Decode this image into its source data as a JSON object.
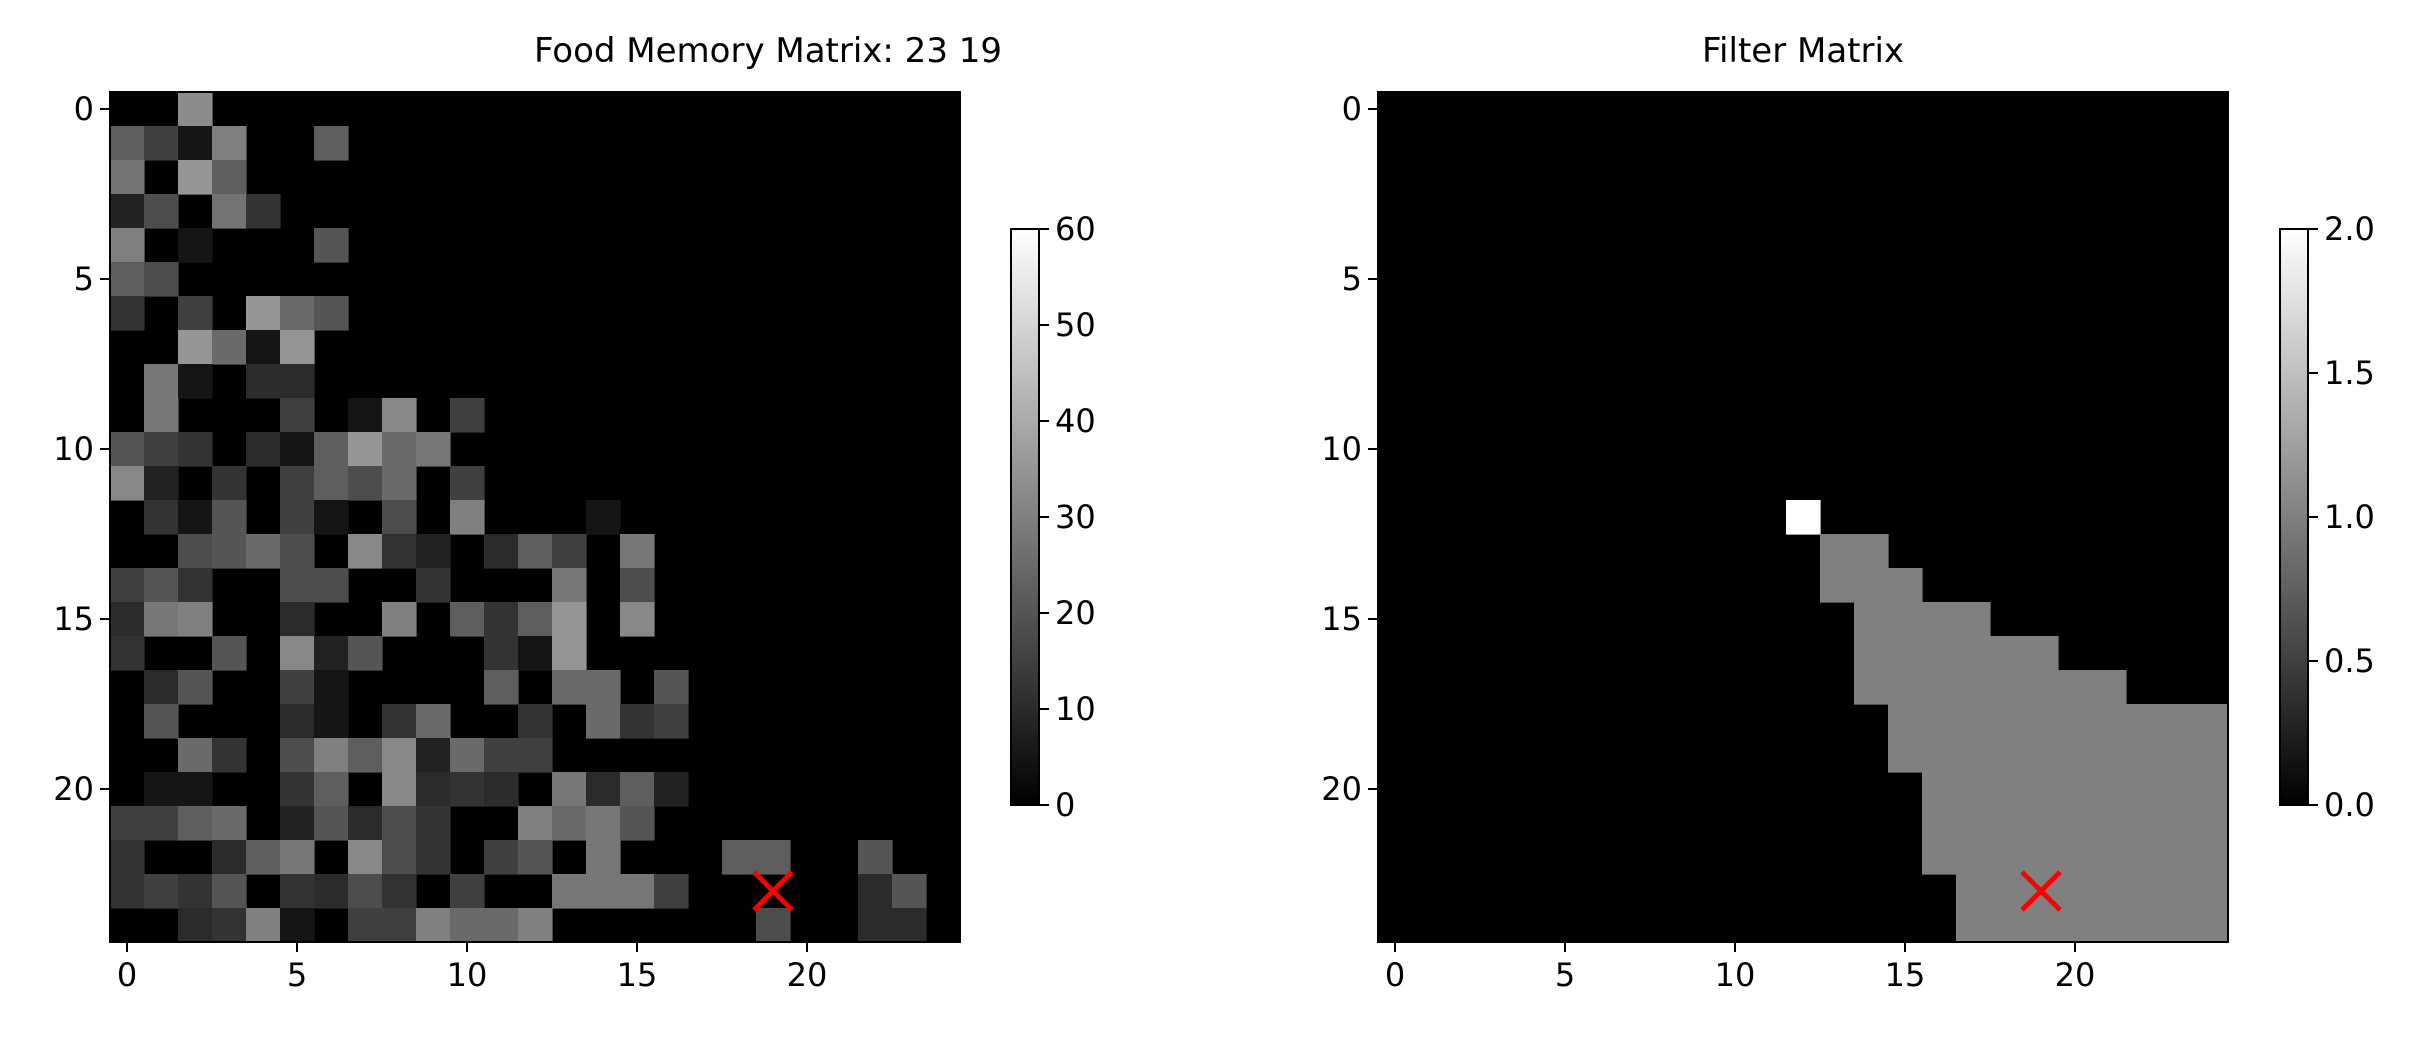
{
  "chart_data": [
    {
      "type": "heatmap",
      "title": "Food Memory Matrix: 23 19",
      "rows": 25,
      "cols": 25,
      "colormap": "gray",
      "vmin": 0,
      "vmax": 60,
      "x_ticks": [
        "0",
        "5",
        "10",
        "15",
        "20"
      ],
      "y_ticks": [
        "0",
        "5",
        "10",
        "15",
        "20"
      ],
      "colorbar_ticks": [
        "0",
        "10",
        "20",
        "30",
        "40",
        "50",
        "60"
      ],
      "marker": {
        "row": 23,
        "col": 19,
        "symbol": "x",
        "color": "#ff0000"
      },
      "matrix": [
        [
          0,
          0,
          33,
          0,
          0,
          0,
          0,
          0,
          0,
          0,
          0,
          0,
          0,
          0,
          0,
          0,
          0,
          0,
          0,
          0,
          0,
          0,
          0,
          0,
          0
        ],
        [
          22,
          15,
          5,
          30,
          0,
          0,
          22,
          0,
          0,
          0,
          0,
          0,
          0,
          0,
          0,
          0,
          0,
          0,
          0,
          0,
          0,
          0,
          0,
          0,
          0
        ],
        [
          27,
          0,
          35,
          22,
          0,
          0,
          0,
          0,
          0,
          0,
          0,
          0,
          0,
          0,
          0,
          0,
          0,
          0,
          0,
          0,
          0,
          0,
          0,
          0,
          0
        ],
        [
          8,
          18,
          0,
          27,
          12,
          0,
          0,
          0,
          0,
          0,
          0,
          0,
          0,
          0,
          0,
          0,
          0,
          0,
          0,
          0,
          0,
          0,
          0,
          0,
          0
        ],
        [
          30,
          0,
          5,
          0,
          0,
          0,
          20,
          0,
          0,
          0,
          0,
          0,
          0,
          0,
          0,
          0,
          0,
          0,
          0,
          0,
          0,
          0,
          0,
          0,
          0
        ],
        [
          22,
          18,
          0,
          0,
          0,
          0,
          0,
          0,
          0,
          0,
          0,
          0,
          0,
          0,
          0,
          0,
          0,
          0,
          0,
          0,
          0,
          0,
          0,
          0,
          0
        ],
        [
          12,
          0,
          15,
          0,
          35,
          25,
          20,
          0,
          0,
          0,
          0,
          0,
          0,
          0,
          0,
          0,
          0,
          0,
          0,
          0,
          0,
          0,
          0,
          0,
          0
        ],
        [
          0,
          0,
          35,
          25,
          5,
          35,
          0,
          0,
          0,
          0,
          0,
          0,
          0,
          0,
          0,
          0,
          0,
          0,
          0,
          0,
          0,
          0,
          0,
          0,
          0
        ],
        [
          0,
          28,
          5,
          0,
          10,
          10,
          0,
          0,
          0,
          0,
          0,
          0,
          0,
          0,
          0,
          0,
          0,
          0,
          0,
          0,
          0,
          0,
          0,
          0,
          0
        ],
        [
          0,
          28,
          0,
          0,
          0,
          15,
          0,
          5,
          32,
          0,
          15,
          0,
          0,
          0,
          0,
          0,
          0,
          0,
          0,
          0,
          0,
          0,
          0,
          0,
          0
        ],
        [
          20,
          15,
          12,
          0,
          10,
          5,
          22,
          35,
          25,
          28,
          0,
          0,
          0,
          0,
          0,
          0,
          0,
          0,
          0,
          0,
          0,
          0,
          0,
          0,
          0
        ],
        [
          32,
          8,
          0,
          12,
          0,
          15,
          22,
          18,
          25,
          0,
          15,
          0,
          0,
          0,
          0,
          0,
          0,
          0,
          0,
          0,
          0,
          0,
          0,
          0,
          0
        ],
        [
          0,
          12,
          5,
          20,
          0,
          15,
          5,
          0,
          18,
          0,
          30,
          0,
          0,
          0,
          5,
          0,
          0,
          0,
          0,
          0,
          0,
          0,
          0,
          0,
          0
        ],
        [
          0,
          0,
          18,
          20,
          25,
          18,
          0,
          32,
          12,
          8,
          0,
          10,
          22,
          15,
          0,
          28,
          0,
          0,
          0,
          0,
          0,
          0,
          0,
          0,
          0
        ],
        [
          15,
          20,
          12,
          0,
          0,
          18,
          18,
          0,
          0,
          12,
          0,
          0,
          0,
          28,
          0,
          18,
          0,
          0,
          0,
          0,
          0,
          0,
          0,
          0,
          0
        ],
        [
          10,
          28,
          30,
          0,
          0,
          10,
          0,
          0,
          30,
          0,
          22,
          12,
          22,
          35,
          0,
          32,
          0,
          0,
          0,
          0,
          0,
          0,
          0,
          0,
          0
        ],
        [
          12,
          0,
          0,
          20,
          0,
          32,
          8,
          20,
          0,
          0,
          0,
          12,
          5,
          35,
          0,
          0,
          0,
          0,
          0,
          0,
          0,
          0,
          0,
          0,
          0
        ],
        [
          0,
          10,
          20,
          0,
          0,
          15,
          5,
          0,
          0,
          0,
          0,
          22,
          0,
          25,
          25,
          0,
          20,
          0,
          0,
          0,
          0,
          0,
          0,
          0,
          0
        ],
        [
          0,
          20,
          0,
          0,
          0,
          10,
          5,
          0,
          12,
          25,
          0,
          0,
          12,
          0,
          25,
          12,
          15,
          0,
          0,
          0,
          0,
          0,
          0,
          0,
          0
        ],
        [
          0,
          0,
          25,
          12,
          0,
          18,
          30,
          22,
          32,
          8,
          25,
          15,
          15,
          0,
          0,
          0,
          0,
          0,
          0,
          0,
          0,
          0,
          0,
          0,
          0
        ],
        [
          0,
          5,
          5,
          0,
          0,
          12,
          22,
          0,
          32,
          10,
          12,
          10,
          0,
          28,
          10,
          22,
          8,
          0,
          0,
          0,
          0,
          0,
          0,
          0,
          0
        ],
        [
          15,
          15,
          22,
          25,
          0,
          8,
          20,
          10,
          18,
          12,
          0,
          0,
          30,
          25,
          28,
          20,
          0,
          0,
          0,
          0,
          0,
          0,
          0,
          0,
          0
        ],
        [
          12,
          0,
          0,
          10,
          22,
          28,
          0,
          32,
          18,
          12,
          0,
          15,
          20,
          0,
          28,
          0,
          0,
          0,
          22,
          22,
          0,
          0,
          20,
          0,
          0
        ],
        [
          12,
          15,
          12,
          20,
          0,
          12,
          10,
          18,
          12,
          0,
          15,
          0,
          0,
          28,
          28,
          28,
          15,
          0,
          0,
          0,
          0,
          0,
          10,
          20,
          0
        ],
        [
          0,
          0,
          10,
          12,
          30,
          5,
          0,
          15,
          15,
          30,
          25,
          25,
          30,
          0,
          0,
          0,
          0,
          0,
          0,
          18,
          0,
          0,
          10,
          10,
          0
        ]
      ]
    },
    {
      "type": "heatmap",
      "title": "Filter Matrix",
      "rows": 25,
      "cols": 25,
      "colormap": "gray",
      "vmin": 0,
      "vmax": 2,
      "x_ticks": [
        "0",
        "5",
        "10",
        "15",
        "20"
      ],
      "y_ticks": [
        "0",
        "5",
        "10",
        "15",
        "20"
      ],
      "colorbar_ticks": [
        "0.0",
        "0.5",
        "1.0",
        "1.5",
        "2.0"
      ],
      "marker": {
        "row": 23,
        "col": 19,
        "symbol": "x",
        "color": "#ff0000"
      },
      "special_cells": [
        {
          "row": 12,
          "col": 12,
          "value": 2
        }
      ],
      "row_ranges": [
        {
          "row": 13,
          "from_col": 13,
          "to_col": 14,
          "value": 1
        },
        {
          "row": 14,
          "from_col": 13,
          "to_col": 15,
          "value": 1
        },
        {
          "row": 15,
          "from_col": 14,
          "to_col": 17,
          "value": 1
        },
        {
          "row": 16,
          "from_col": 14,
          "to_col": 19,
          "value": 1
        },
        {
          "row": 17,
          "from_col": 14,
          "to_col": 21,
          "value": 1
        },
        {
          "row": 18,
          "from_col": 15,
          "to_col": 24,
          "value": 1
        },
        {
          "row": 19,
          "from_col": 15,
          "to_col": 24,
          "value": 1
        },
        {
          "row": 20,
          "from_col": 16,
          "to_col": 24,
          "value": 1
        },
        {
          "row": 21,
          "from_col": 16,
          "to_col": 24,
          "value": 1
        },
        {
          "row": 22,
          "from_col": 16,
          "to_col": 24,
          "value": 1
        },
        {
          "row": 23,
          "from_col": 17,
          "to_col": 24,
          "value": 1
        },
        {
          "row": 24,
          "from_col": 17,
          "to_col": 24,
          "value": 1
        }
      ]
    }
  ]
}
